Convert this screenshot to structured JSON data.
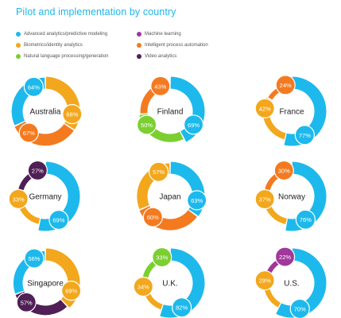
{
  "chart_data": {
    "type": "pie",
    "title": "Pilot and implementation by country",
    "legend_placement": "top",
    "categories": [
      {
        "key": "advanced",
        "label": "Advanced analytics/predictive modeling",
        "color": "#1db9ec"
      },
      {
        "key": "biometrics",
        "label": "Biometrics/identity analytics",
        "color": "#f2a71c"
      },
      {
        "key": "nlp",
        "label": "Natural language processing/generation",
        "color": "#7ccf31"
      },
      {
        "key": "ml",
        "label": "Machine learning",
        "color": "#a0389a"
      },
      {
        "key": "ipa",
        "label": "Intelligent process automation",
        "color": "#f47a20"
      },
      {
        "key": "video",
        "label": "Video analytics",
        "color": "#4f1f55"
      }
    ],
    "countries": [
      {
        "name": "Australia",
        "values": [
          {
            "key": "biometrics",
            "label": "68%",
            "value": 68
          },
          {
            "key": "ipa",
            "label": "67%",
            "value": 67
          },
          {
            "key": "advanced",
            "label": "64%",
            "value": 64
          }
        ]
      },
      {
        "name": "Finland",
        "values": [
          {
            "key": "advanced",
            "label": "69%",
            "value": 69
          },
          {
            "key": "nlp",
            "label": "50%",
            "value": 50
          },
          {
            "key": "ipa",
            "label": "43%",
            "value": 43
          }
        ]
      },
      {
        "name": "France",
        "values": [
          {
            "key": "advanced",
            "label": "77%",
            "value": 77
          },
          {
            "key": "biometrics",
            "label": "42%",
            "value": 42
          },
          {
            "key": "ipa",
            "label": "24%",
            "value": 24
          }
        ]
      },
      {
        "name": "Germany",
        "values": [
          {
            "key": "advanced",
            "label": "69%",
            "value": 69
          },
          {
            "key": "biometrics",
            "label": "33%",
            "value": 33
          },
          {
            "key": "video",
            "label": "27%",
            "value": 27
          }
        ]
      },
      {
        "name": "Japan",
        "values": [
          {
            "key": "advanced",
            "label": "63%",
            "value": 63
          },
          {
            "key": "ipa",
            "label": "60%",
            "value": 60
          },
          {
            "key": "biometrics",
            "label": "57%",
            "value": 57
          }
        ]
      },
      {
        "name": "Norway",
        "values": [
          {
            "key": "advanced",
            "label": "76%",
            "value": 76
          },
          {
            "key": "biometrics",
            "label": "37%",
            "value": 37
          },
          {
            "key": "ipa",
            "label": "30%",
            "value": 30
          }
        ]
      },
      {
        "name": "Singapore",
        "values": [
          {
            "key": "biometrics",
            "label": "69%",
            "value": 69
          },
          {
            "key": "video",
            "label": "57%",
            "value": 57
          },
          {
            "key": "advanced",
            "label": "56%",
            "value": 56
          }
        ]
      },
      {
        "name": "U.K.",
        "values": [
          {
            "key": "advanced",
            "label": "82%",
            "value": 82
          },
          {
            "key": "biometrics",
            "label": "34%",
            "value": 34
          },
          {
            "key": "nlp",
            "label": "33%",
            "value": 33
          }
        ]
      },
      {
        "name": "U.S.",
        "values": [
          {
            "key": "advanced",
            "label": "70%",
            "value": 70
          },
          {
            "key": "biometrics",
            "label": "29%",
            "value": 29
          },
          {
            "key": "ml",
            "label": "22%",
            "value": 22
          }
        ]
      }
    ]
  }
}
